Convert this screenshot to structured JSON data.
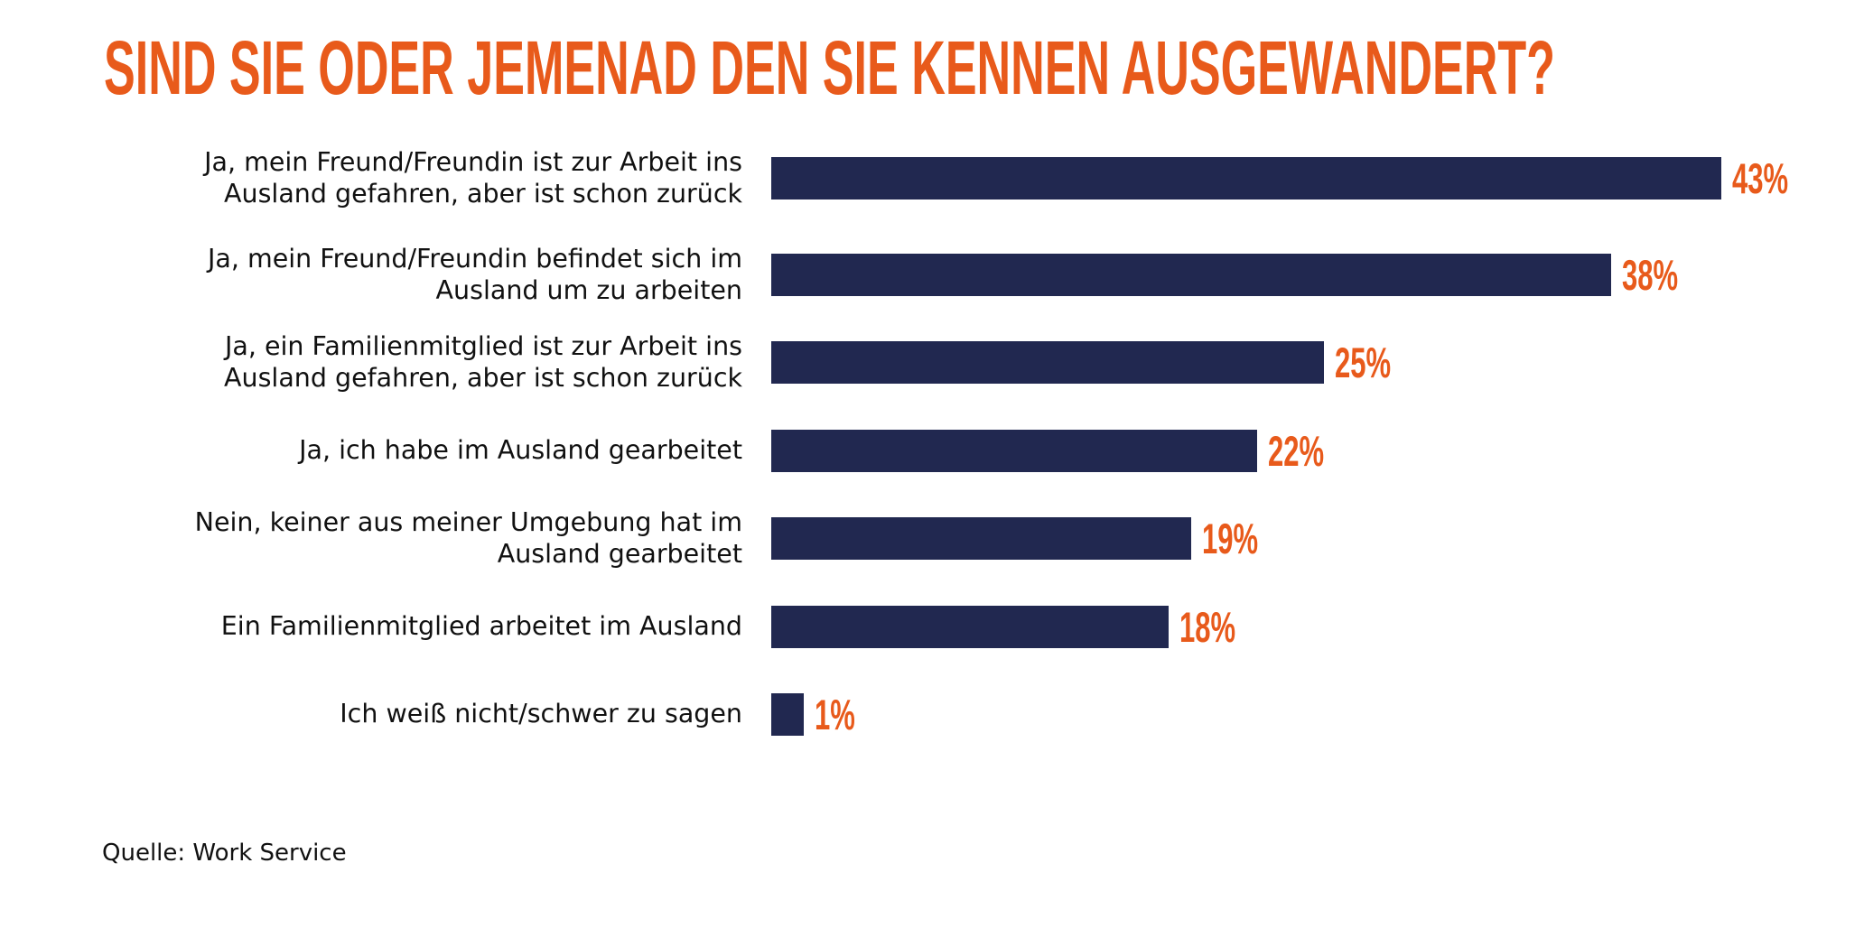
{
  "chart_data": {
    "type": "bar",
    "orientation": "horizontal",
    "title": "SIND SIE ODER JEMENAD DEN SIE KENNEN AUSGEWANDERT?",
    "xlabel": "",
    "ylabel": "",
    "xlim": [
      0,
      43
    ],
    "grid": false,
    "legend": "none",
    "unit": "%",
    "categories": [
      "Ja, mein Freund/Freundin ist zur Arbeit ins\nAusland gefahren, aber ist schon zurück",
      "Ja, mein Freund/Freundin befindet sich im\nAusland um zu arbeiten",
      "Ja, ein Familienmitglied  ist zur Arbeit ins\nAusland  gefahren, aber ist schon zurück",
      "Ja, ich habe im Ausland gearbeitet",
      "Nein, keiner aus meiner Umgebung hat im\nAusland gearbeitet",
      "Ein Familienmitglied arbeitet im Ausland",
      "Ich weiß nicht/schwer zu sagen"
    ],
    "values": [
      43,
      38,
      25,
      22,
      19,
      18,
      1
    ],
    "value_labels": [
      "43%",
      "38%",
      "25%",
      "22%",
      "19%",
      "18%",
      "1%"
    ],
    "colors": {
      "bar": "#212850",
      "value_label": "#E85A1B",
      "title": "#E85A1B",
      "category_label": "#111111"
    },
    "source": "Quelle: Work Service"
  }
}
